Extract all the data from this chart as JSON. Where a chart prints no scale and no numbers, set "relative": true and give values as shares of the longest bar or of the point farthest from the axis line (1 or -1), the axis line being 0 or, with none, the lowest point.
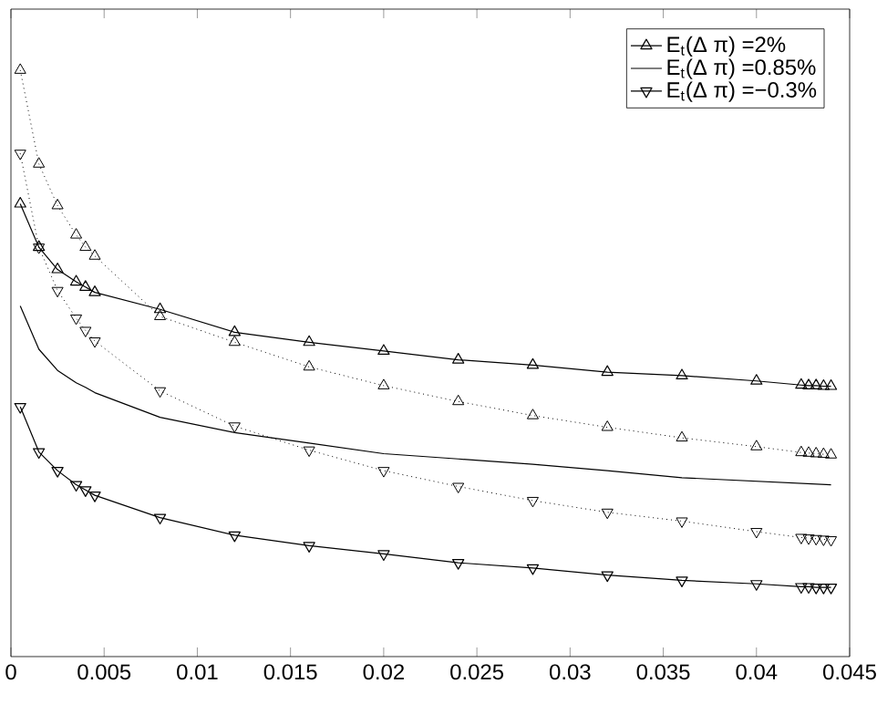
{
  "chart_data": {
    "type": "line",
    "relative": true,
    "legend": "top right",
    "xlim": [
      0,
      0.045
    ],
    "xticks": [
      0,
      0.005,
      0.01,
      0.015,
      0.02,
      0.025,
      0.03,
      0.035,
      0.04,
      0.045
    ],
    "series": [
      {
        "name": "E$_{t}$(Δ π) =2%",
        "color": "#000000",
        "marker": "triangle",
        "line_style": "solid",
        "x": [
          0.0005,
          0.0015,
          0.0025,
          0.0035,
          0.004,
          0.0045,
          0.008,
          0.012,
          0.016,
          0.02,
          0.024,
          0.028,
          0.032,
          0.036,
          0.04,
          0.0424,
          0.0428,
          0.0432,
          0.0436,
          0.044
        ],
        "values": [
          0.772,
          0.698,
          0.66,
          0.639,
          0.63,
          0.621,
          0.592,
          0.553,
          0.536,
          0.521,
          0.506,
          0.497,
          0.485,
          0.479,
          0.47,
          0.463,
          0.462,
          0.462,
          0.461,
          0.461
        ]
      },
      {
        "color": "#000000",
        "marker": "triangle",
        "line_style": "dotted",
        "x": [
          0.0005,
          0.0015,
          0.0025,
          0.0035,
          0.004,
          0.0045,
          0.008,
          0.012,
          0.016,
          0.02,
          0.024,
          0.028,
          0.032,
          0.036,
          0.04,
          0.0424,
          0.0428,
          0.0432,
          0.0436,
          0.044
        ],
        "values": [
          1.0,
          0.84,
          0.769,
          0.719,
          0.698,
          0.683,
          0.58,
          0.536,
          0.494,
          0.462,
          0.435,
          0.411,
          0.391,
          0.373,
          0.358,
          0.348,
          0.347,
          0.346,
          0.345,
          0.344
        ]
      },
      {
        "name": "E$_{t}$(Δ π) =0.85%",
        "color": "#000000",
        "marker": "none",
        "line_style": "solid",
        "x": [
          0.0005,
          0.0015,
          0.0025,
          0.0035,
          0.004,
          0.0045,
          0.008,
          0.012,
          0.016,
          0.02,
          0.024,
          0.028,
          0.032,
          0.036,
          0.04,
          0.044
        ],
        "values": [
          0.598,
          0.524,
          0.488,
          0.467,
          0.459,
          0.45,
          0.408,
          0.382,
          0.364,
          0.346,
          0.337,
          0.328,
          0.317,
          0.305,
          0.299,
          0.293
        ]
      },
      {
        "color": "#000000",
        "marker": "triangle_down",
        "line_style": "dotted",
        "x": [
          0.0005,
          0.0015,
          0.0025,
          0.0035,
          0.004,
          0.0045,
          0.008,
          0.012,
          0.016,
          0.02,
          0.024,
          0.028,
          0.032,
          0.036,
          0.04,
          0.0424,
          0.0428,
          0.0432,
          0.0436,
          0.044
        ],
        "values": [
          0.858,
          0.698,
          0.624,
          0.577,
          0.556,
          0.538,
          0.453,
          0.393,
          0.352,
          0.317,
          0.29,
          0.266,
          0.246,
          0.231,
          0.213,
          0.203,
          0.202,
          0.201,
          0.2,
          0.199
        ]
      },
      {
        "name": "E$_{t}$(Δ π) =−0.3%",
        "color": "#000000",
        "marker": "triangle_down",
        "line_style": "solid",
        "x": [
          0.0005,
          0.0015,
          0.0025,
          0.0035,
          0.004,
          0.0045,
          0.008,
          0.012,
          0.016,
          0.02,
          0.024,
          0.028,
          0.032,
          0.036,
          0.04,
          0.0424,
          0.0428,
          0.0432,
          0.0436,
          0.044
        ],
        "values": [
          0.426,
          0.349,
          0.317,
          0.293,
          0.284,
          0.275,
          0.237,
          0.207,
          0.189,
          0.175,
          0.16,
          0.151,
          0.139,
          0.13,
          0.124,
          0.119,
          0.119,
          0.118,
          0.118,
          0.118
        ]
      }
    ]
  }
}
